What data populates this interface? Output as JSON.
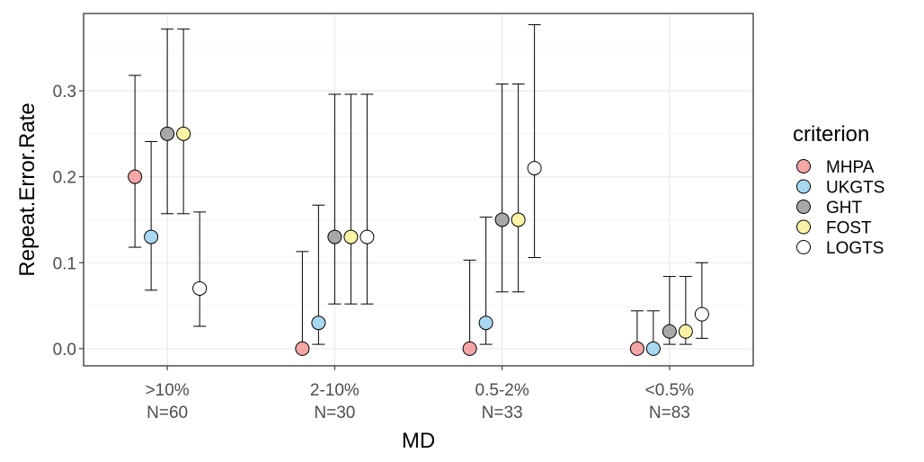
{
  "chart_data": {
    "type": "scatter",
    "subtype": "dot-with-error-bars",
    "title": "",
    "xlabel": "MD",
    "ylabel": "Repeat.Error.Rate",
    "ylim": [
      -0.02,
      0.39
    ],
    "yticks": [
      0.0,
      0.1,
      0.2,
      0.3
    ],
    "ytick_labels": [
      "0.0",
      "0.1",
      "0.2",
      "0.3"
    ],
    "grid": true,
    "legend_title": "criterion",
    "legend_position": "right",
    "categories": [
      {
        "label": ">10%",
        "n": "N=60"
      },
      {
        "label": "2-10%",
        "n": "N=30"
      },
      {
        "label": "0.5-2%",
        "n": "N=33"
      },
      {
        "label": "<0.5%",
        "n": "N=83"
      }
    ],
    "series": [
      {
        "name": "MHPA",
        "color": "#F4A6A6",
        "values": [
          0.2,
          0.0,
          0.0,
          0.0
        ],
        "lower": [
          0.118,
          0.0,
          0.0,
          0.0
        ],
        "upper": [
          0.318,
          0.113,
          0.103,
          0.044
        ]
      },
      {
        "name": "UKGTS",
        "color": "#A9D8F2",
        "values": [
          0.13,
          0.03,
          0.03,
          0.0
        ],
        "lower": [
          0.068,
          0.005,
          0.005,
          0.0
        ],
        "upper": [
          0.241,
          0.167,
          0.153,
          0.044
        ]
      },
      {
        "name": "GHT",
        "color": "#A8A8A8",
        "values": [
          0.25,
          0.13,
          0.15,
          0.02
        ],
        "lower": [
          0.157,
          0.052,
          0.066,
          0.005
        ],
        "upper": [
          0.372,
          0.296,
          0.308,
          0.084
        ]
      },
      {
        "name": "FOST",
        "color": "#FAF3A5",
        "values": [
          0.25,
          0.13,
          0.15,
          0.02
        ],
        "lower": [
          0.157,
          0.052,
          0.066,
          0.005
        ],
        "upper": [
          0.372,
          0.296,
          0.308,
          0.084
        ]
      },
      {
        "name": "LOGTS",
        "color": "#FFFFFF",
        "values": [
          0.07,
          0.13,
          0.21,
          0.04
        ],
        "lower": [
          0.026,
          0.052,
          0.106,
          0.012
        ],
        "upper": [
          0.159,
          0.296,
          0.377,
          0.1
        ]
      }
    ]
  }
}
